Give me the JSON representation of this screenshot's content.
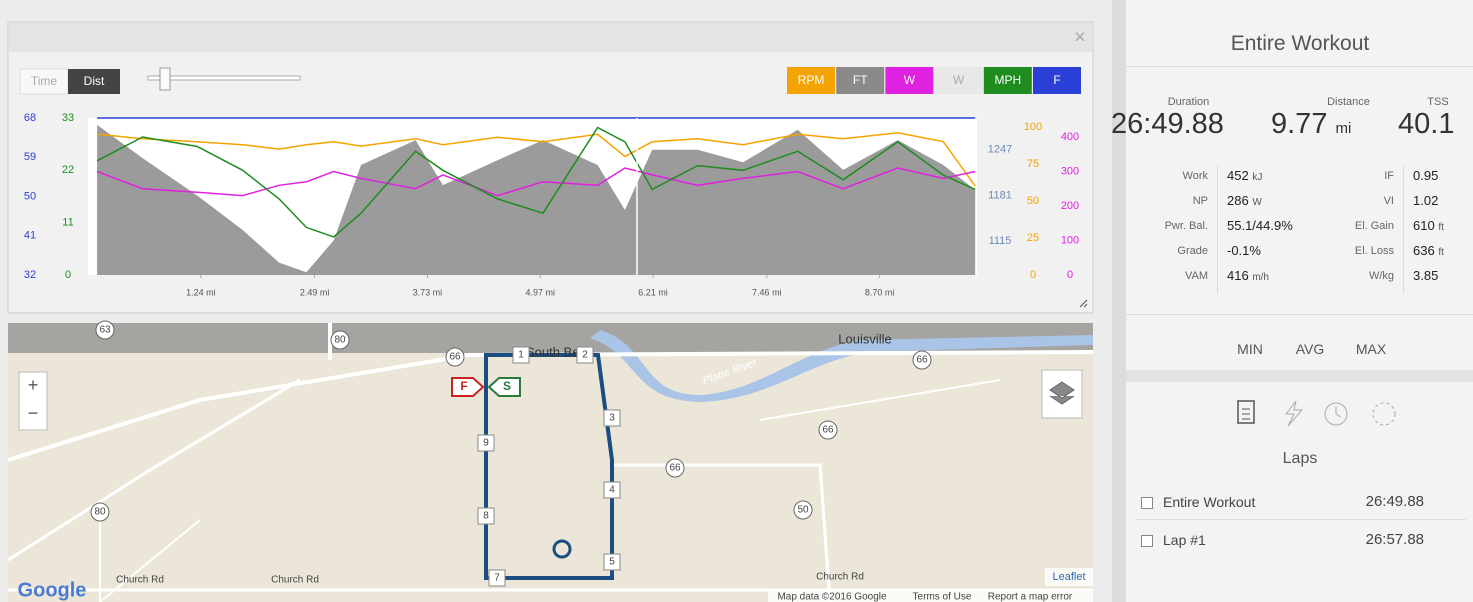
{
  "chart_panel": {
    "close": "×",
    "toggle": [
      "Time",
      "Dist"
    ],
    "channels": [
      {
        "label": "RPM",
        "color": "#f5a300",
        "active": true,
        "ylim": [
          0,
          106
        ],
        "yticks": [
          100,
          75,
          50,
          25,
          0
        ],
        "values": [
          95,
          92,
          90,
          88,
          85,
          88,
          90,
          87,
          92,
          88,
          93,
          90,
          95,
          80,
          90,
          92,
          88,
          95,
          92,
          96,
          90,
          60
        ]
      },
      {
        "label": "FT",
        "color": "#8a8a8a",
        "active": true,
        "fill": true,
        "ylim": [
          1066,
          1293
        ],
        "yticks": [
          1247,
          1181,
          1115
        ],
        "values": [
          1283,
          1235,
          1181,
          1131,
          1084,
          1070,
          1116,
          1225,
          1261,
          1196,
          1232,
          1261,
          1225,
          1160,
          1247,
          1247,
          1229,
          1276,
          1218,
          1261,
          1225,
          1189
        ]
      },
      {
        "label": "W",
        "color": "#e021e0",
        "active": true,
        "ylim": [
          0,
          455
        ],
        "yticks": [
          400,
          300,
          200,
          100,
          0
        ],
        "values": [
          300,
          250,
          240,
          230,
          260,
          270,
          300,
          280,
          250,
          290,
          230,
          270,
          260,
          310,
          290,
          260,
          280,
          300,
          250,
          310,
          280,
          300
        ]
      },
      {
        "label": "W",
        "color": "#e8e8e8",
        "active": false
      },
      {
        "label": "MPH",
        "color": "#1e8c1e",
        "active": true,
        "ylim": [
          0,
          33
        ],
        "yticks": [
          33,
          22,
          11,
          0
        ],
        "values": [
          24,
          29,
          27,
          22,
          16,
          10,
          8,
          13,
          26,
          22,
          16,
          13,
          31,
          28,
          18,
          23,
          22,
          26,
          20,
          28,
          21,
          18
        ]
      },
      {
        "label": "F",
        "color": "#2a3fd6",
        "active": true,
        "ylim": [
          32,
          68
        ],
        "yticks": [
          68,
          59,
          50,
          41,
          32
        ],
        "values": [
          68,
          68,
          68,
          68,
          68,
          68,
          68,
          68,
          68,
          68,
          68,
          68,
          68,
          68,
          68,
          68,
          68,
          68,
          68,
          68,
          68,
          68
        ]
      }
    ],
    "x": [
      0.1,
      0.6,
      1.2,
      1.7,
      2.1,
      2.4,
      2.7,
      3.0,
      3.6,
      3.9,
      4.5,
      5.0,
      5.6,
      5.9,
      6.2,
      6.7,
      7.2,
      7.8,
      8.3,
      8.9,
      9.4,
      9.75
    ],
    "xlim": [
      0,
      9.77
    ],
    "xticks": [
      {
        "value": 1.24,
        "label": "1.24 mi"
      },
      {
        "value": 2.49,
        "label": "2.49 mi"
      },
      {
        "value": 3.73,
        "label": "3.73 mi"
      },
      {
        "value": 4.97,
        "label": "4.97 mi"
      },
      {
        "value": 6.21,
        "label": "6.21 mi"
      },
      {
        "value": 7.46,
        "label": "7.46 mi"
      },
      {
        "value": 8.7,
        "label": "8.70 mi"
      }
    ]
  },
  "map": {
    "places": [
      "South Bend",
      "Louisville"
    ],
    "river": "Platte River",
    "roads": [
      "Church Rd",
      "Church Rd",
      "Church Rd"
    ],
    "shields": [
      "63",
      "80",
      "66",
      "66",
      "66",
      "66",
      "50",
      "80"
    ],
    "markers": [
      "1",
      "2",
      "3",
      "4",
      "5",
      "7",
      "8",
      "9"
    ],
    "flags": [
      "F",
      "S"
    ],
    "zoom": [
      "+",
      "−"
    ],
    "logo": "Google",
    "credit": "Leaflet",
    "attribution": [
      "Map data ©2016 Google",
      "Terms of Use",
      "Report a map error"
    ]
  },
  "side": {
    "title": "Entire Workout",
    "stats": [
      {
        "label": "Duration",
        "value": "26:49.88"
      },
      {
        "label": "Distance",
        "value": "9.77",
        "unit": "mi"
      },
      {
        "label": "TSS",
        "value": "40.1"
      }
    ],
    "metrics_left": [
      {
        "label": "Work",
        "value": "452",
        "unit": "kJ"
      },
      {
        "label": "NP",
        "value": "286",
        "unit": "W"
      },
      {
        "label": "Pwr. Bal.",
        "value": "55.1/44.9%"
      },
      {
        "label": "Grade",
        "value": "-0.1%"
      },
      {
        "label": "VAM",
        "value": "416",
        "unit": "m/h"
      }
    ],
    "metrics_right": [
      {
        "label": "IF",
        "value": "0.95"
      },
      {
        "label": "VI",
        "value": "1.02"
      },
      {
        "label": "El. Gain",
        "value": "610",
        "unit": "ft"
      },
      {
        "label": "El. Loss",
        "value": "636",
        "unit": "ft"
      },
      {
        "label": "W/kg",
        "value": "3.85"
      }
    ],
    "range_header": [
      "MIN",
      "AVG",
      "MAX"
    ],
    "laps_title": "Laps",
    "laps": [
      {
        "name": "Entire Workout",
        "time": "26:49.88"
      },
      {
        "name": "Lap #1",
        "time": "26:57.88"
      }
    ]
  }
}
